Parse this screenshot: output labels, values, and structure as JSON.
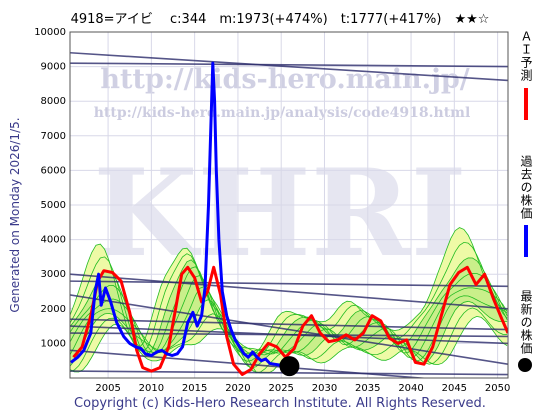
{
  "header": {
    "text": "4918=アイビ　 c:344　m:1973(+474%)　t:1777(+417%)　★★☆"
  },
  "side_left_text": "Generated on Monday 2026/1/5.",
  "footer_text": "Copyright (c) Kids-Hero Research Institute. All Rights Reserved.",
  "watermark": {
    "url1": "http://kids-hero.main.jp/",
    "url2": "http://kids-hero.main.jp/analysis/code4918.html",
    "big": "KHRI"
  },
  "legend": {
    "ai_label": "ＡＩ予測",
    "past_label": "過去の株価",
    "latest_label": "最新の株価"
  },
  "colors": {
    "ai": "#ff0000",
    "past": "#0000ff",
    "latest": "#000000",
    "band": "#eefaa6",
    "band_lines": "#22bb22",
    "trend": "#2a2a6a"
  },
  "chart_data": {
    "type": "line",
    "x_ticks": [
      2005,
      2010,
      2015,
      2020,
      2025,
      2030,
      2035,
      2040,
      2045,
      2050
    ],
    "y_ticks": [
      1000,
      2000,
      3000,
      4000,
      5000,
      6000,
      7000,
      8000,
      9000,
      10000
    ],
    "xlim": [
      2000.6,
      2051.2
    ],
    "ylim": [
      0,
      10000
    ],
    "grid": true,
    "series": [
      {
        "name": "ＡＩ予測",
        "color": "#ff0000",
        "points": [
          [
            2001.0,
            600
          ],
          [
            2002.0,
            900
          ],
          [
            2003.0,
            1800
          ],
          [
            2003.8,
            2800
          ],
          [
            2004.5,
            3100
          ],
          [
            2005.5,
            3050
          ],
          [
            2006.5,
            2800
          ],
          [
            2007.5,
            1900
          ],
          [
            2008.3,
            800
          ],
          [
            2009.0,
            300
          ],
          [
            2010.0,
            200
          ],
          [
            2011.0,
            300
          ],
          [
            2012.0,
            900
          ],
          [
            2012.8,
            2000
          ],
          [
            2013.5,
            3000
          ],
          [
            2014.2,
            3200
          ],
          [
            2015.0,
            2900
          ],
          [
            2015.8,
            2200
          ],
          [
            2016.5,
            2500
          ],
          [
            2017.2,
            3200
          ],
          [
            2018.0,
            2400
          ],
          [
            2018.7,
            1200
          ],
          [
            2019.5,
            400
          ],
          [
            2020.5,
            100
          ],
          [
            2021.5,
            250
          ],
          [
            2022.5,
            700
          ],
          [
            2023.5,
            1000
          ],
          [
            2024.5,
            900
          ],
          [
            2025.5,
            600
          ],
          [
            2026.5,
            850
          ],
          [
            2027.5,
            1500
          ],
          [
            2028.5,
            1800
          ],
          [
            2029.5,
            1300
          ],
          [
            2030.5,
            1050
          ],
          [
            2031.5,
            1100
          ],
          [
            2032.5,
            1250
          ],
          [
            2033.5,
            1100
          ],
          [
            2034.5,
            1300
          ],
          [
            2035.5,
            1800
          ],
          [
            2036.5,
            1650
          ],
          [
            2037.5,
            1150
          ],
          [
            2038.5,
            1000
          ],
          [
            2039.5,
            1100
          ],
          [
            2040.5,
            450
          ],
          [
            2041.5,
            400
          ],
          [
            2042.5,
            900
          ],
          [
            2043.5,
            1800
          ],
          [
            2044.5,
            2700
          ],
          [
            2045.5,
            3050
          ],
          [
            2046.5,
            3200
          ],
          [
            2047.5,
            2700
          ],
          [
            2048.5,
            3000
          ],
          [
            2049.5,
            2300
          ],
          [
            2050.5,
            1700
          ],
          [
            2051.2,
            1300
          ]
        ]
      },
      {
        "name": "過去の株価",
        "color": "#0000ff",
        "points": [
          [
            2000.7,
            450
          ],
          [
            2001.5,
            600
          ],
          [
            2002.2,
            800
          ],
          [
            2003.0,
            1300
          ],
          [
            2003.5,
            2500
          ],
          [
            2003.9,
            3000
          ],
          [
            2004.2,
            2100
          ],
          [
            2004.7,
            2600
          ],
          [
            2005.3,
            2200
          ],
          [
            2006.0,
            1600
          ],
          [
            2006.8,
            1200
          ],
          [
            2007.5,
            1000
          ],
          [
            2008.2,
            900
          ],
          [
            2008.8,
            850
          ],
          [
            2009.3,
            700
          ],
          [
            2010.0,
            650
          ],
          [
            2010.6,
            750
          ],
          [
            2011.2,
            800
          ],
          [
            2011.8,
            700
          ],
          [
            2012.4,
            650
          ],
          [
            2013.0,
            700
          ],
          [
            2013.6,
            900
          ],
          [
            2014.2,
            1600
          ],
          [
            2014.8,
            1900
          ],
          [
            2015.3,
            1500
          ],
          [
            2015.8,
            1800
          ],
          [
            2016.2,
            2600
          ],
          [
            2016.6,
            5000
          ],
          [
            2016.9,
            7500
          ],
          [
            2017.1,
            9100
          ],
          [
            2017.3,
            8000
          ],
          [
            2017.5,
            6000
          ],
          [
            2017.8,
            4000
          ],
          [
            2018.2,
            2500
          ],
          [
            2018.7,
            1800
          ],
          [
            2019.2,
            1400
          ],
          [
            2019.7,
            1100
          ],
          [
            2020.2,
            900
          ],
          [
            2020.7,
            700
          ],
          [
            2021.2,
            600
          ],
          [
            2021.7,
            750
          ],
          [
            2022.2,
            600
          ],
          [
            2022.7,
            500
          ],
          [
            2023.2,
            550
          ],
          [
            2023.7,
            420
          ],
          [
            2024.2,
            400
          ],
          [
            2024.7,
            380
          ],
          [
            2025.0,
            344
          ]
        ]
      }
    ],
    "band_series_count": 9,
    "trend_lines": [
      [
        [
          2000.6,
          9400
        ],
        [
          2051.2,
          8600
        ]
      ],
      [
        [
          2000.6,
          9100
        ],
        [
          2051.2,
          9000
        ]
      ],
      [
        [
          2000.6,
          3000
        ],
        [
          2051.2,
          2000
        ]
      ],
      [
        [
          2000.6,
          2800
        ],
        [
          2051.2,
          2650
        ]
      ],
      [
        [
          2000.6,
          1700
        ],
        [
          2051.2,
          1400
        ]
      ],
      [
        [
          2000.6,
          1500
        ],
        [
          2051.2,
          1000
        ]
      ],
      [
        [
          2000.6,
          1300
        ],
        [
          2051.2,
          1200
        ]
      ],
      [
        [
          2000.6,
          800
        ],
        [
          2051.2,
          -200
        ]
      ],
      [
        [
          2000.6,
          200
        ],
        [
          2051.2,
          100
        ]
      ],
      [
        [
          2000.6,
          2400
        ],
        [
          2051.2,
          400
        ]
      ]
    ],
    "latest": {
      "x": 2025.95,
      "y": 344
    }
  }
}
